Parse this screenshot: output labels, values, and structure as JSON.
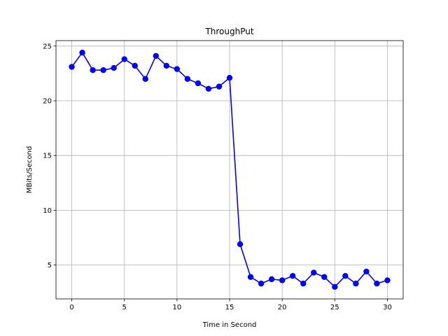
{
  "chart_data": {
    "type": "line",
    "title": "ThroughPut",
    "xlabel": "Time in Second",
    "ylabel": "MBits/Second",
    "xlim": [
      -1.5,
      31.5
    ],
    "ylim": [
      1.9,
      25.5
    ],
    "xticks": [
      0,
      5,
      10,
      15,
      20,
      25,
      30
    ],
    "yticks": [
      5,
      10,
      15,
      20,
      25
    ],
    "grid": true,
    "series": [
      {
        "color": "#0000ff",
        "marker": "circle",
        "x": [
          0,
          1,
          2,
          3,
          4,
          5,
          6,
          7,
          8,
          9,
          10,
          11,
          12,
          13,
          14,
          15,
          16,
          17,
          18,
          19,
          20,
          21,
          22,
          23,
          24,
          25,
          26,
          27,
          28,
          29,
          30
        ],
        "y": [
          23.1,
          24.4,
          22.8,
          22.8,
          23.0,
          23.8,
          23.2,
          22.0,
          24.1,
          23.2,
          22.9,
          22.0,
          21.6,
          21.1,
          21.3,
          22.1,
          6.9,
          3.9,
          3.3,
          3.7,
          3.6,
          4.0,
          3.3,
          4.3,
          3.9,
          3.0,
          4.0,
          3.3,
          4.4,
          3.3,
          3.6
        ]
      }
    ]
  }
}
